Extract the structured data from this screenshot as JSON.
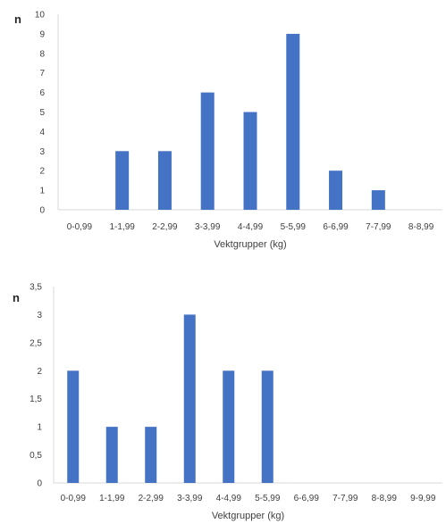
{
  "chart_data": [
    {
      "type": "bar",
      "title": "",
      "xlabel": "Vektgrupper (kg)",
      "ylabel": "n",
      "categories": [
        "0-0,99",
        "1-1,99",
        "2-2,99",
        "3-3,99",
        "4-4,99",
        "5-5,99",
        "6-6,99",
        "7-7,99",
        "8-8,99"
      ],
      "values": [
        0,
        3,
        3,
        6,
        5,
        9,
        2,
        1,
        0
      ],
      "ylim": [
        0,
        10
      ],
      "yticks": [
        "0",
        "1",
        "2",
        "3",
        "4",
        "5",
        "6",
        "7",
        "8",
        "9",
        "10"
      ],
      "ytick_values": [
        0,
        1,
        2,
        3,
        4,
        5,
        6,
        7,
        8,
        9,
        10
      ],
      "grid": false,
      "legend": "none",
      "bar_color": "#4472C4"
    },
    {
      "type": "bar",
      "title": "",
      "xlabel": "Vektgrupper (kg)",
      "ylabel": "n",
      "categories": [
        "0-0,99",
        "1-1,99",
        "2-2,99",
        "3-3,99",
        "4-4,99",
        "5-5,99",
        "6-6,99",
        "7-7,99",
        "8-8,99",
        "9-9,99"
      ],
      "values": [
        2,
        1,
        1,
        3,
        2,
        2,
        0,
        0,
        0,
        0
      ],
      "ylim": [
        0,
        3.5
      ],
      "yticks": [
        "0",
        "0,5",
        "1",
        "1,5",
        "2",
        "2,5",
        "3",
        "3,5"
      ],
      "ytick_values": [
        0,
        0.5,
        1,
        1.5,
        2,
        2.5,
        3,
        3.5
      ],
      "grid": false,
      "legend": "none",
      "bar_color": "#4472C4"
    }
  ]
}
